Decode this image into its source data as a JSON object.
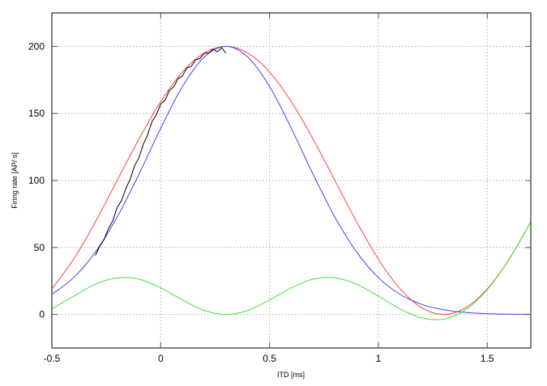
{
  "chart_data": {
    "type": "line",
    "title": "",
    "xlabel": "ITD [ms]",
    "ylabel": "Firing rate [AP/ s]",
    "xlim": [
      -0.5,
      1.7
    ],
    "ylim": [
      -25,
      225
    ],
    "xticks": [
      -0.5,
      0,
      0.5,
      1,
      1.5
    ],
    "xtick_labels": [
      "-0.5",
      "0",
      "0.5",
      "1",
      "1.5"
    ],
    "yticks": [
      0,
      50,
      100,
      150,
      200
    ],
    "ytick_labels": [
      "0",
      "50",
      "100",
      "150",
      "200"
    ],
    "grid": true,
    "legend": "none",
    "series": [
      {
        "color": "#ff4040",
        "x": [
          -0.5,
          -0.4,
          -0.3,
          -0.2,
          -0.1,
          0,
          0.1,
          0.2,
          0.3,
          0.4,
          0.5,
          0.6,
          0.7,
          0.8,
          0.9,
          1.0,
          1.1,
          1.2,
          1.3,
          1.4,
          1.5,
          1.6,
          1.7
        ],
        "y": [
          19.1,
          41.2,
          69.1,
          100,
          130.9,
          158.8,
          180.9,
          195.1,
          200,
          195.1,
          180.9,
          158.8,
          130.9,
          100,
          69.1,
          41.2,
          19.1,
          4.9,
          0,
          4.9,
          19.1,
          41.2,
          69.1
        ]
      },
      {
        "color": "#4040ff",
        "x": [
          -0.5,
          -0.4,
          -0.3,
          -0.2,
          -0.1,
          0,
          0.1,
          0.2,
          0.3,
          0.4,
          0.5,
          0.6,
          0.7,
          0.8,
          0.9,
          1.0,
          1.1,
          1.2,
          1.3,
          1.4,
          1.5,
          1.6,
          1.7
        ],
        "y": [
          15.0,
          27.5,
          46.6,
          72.7,
          104.6,
          138.9,
          170.1,
          192.1,
          200,
          192.1,
          170.1,
          138.9,
          104.6,
          72.7,
          46.6,
          27.5,
          15.0,
          7.5,
          3.5,
          1.5,
          0.6,
          0.2,
          0.1
        ]
      },
      {
        "color": "#40e040",
        "x": [
          -0.5,
          -0.4,
          -0.3,
          -0.2,
          -0.1,
          0,
          0.1,
          0.2,
          0.3,
          0.4,
          0.5,
          0.6,
          0.7,
          0.8,
          0.9,
          1.0,
          1.1,
          1.2,
          1.3,
          1.4,
          1.5,
          1.6,
          1.7
        ],
        "y": [
          4.1,
          13.7,
          22.5,
          27.3,
          26.3,
          19.9,
          10.8,
          3.0,
          0,
          3.0,
          10.8,
          19.9,
          26.3,
          27.3,
          22.5,
          13.7,
          4.1,
          -2.6,
          -3.5,
          3.4,
          18.5,
          41.0,
          69.0
        ]
      },
      {
        "color": "#000000",
        "x": [
          -0.3,
          -0.28,
          -0.26,
          -0.24,
          -0.22,
          -0.2,
          -0.18,
          -0.16,
          -0.14,
          -0.12,
          -0.1,
          -0.08,
          -0.06,
          -0.04,
          -0.02,
          0,
          0.02,
          0.04,
          0.06,
          0.08,
          0.1,
          0.12,
          0.14,
          0.16,
          0.18,
          0.2,
          0.22,
          0.24,
          0.26,
          0.28,
          0.3
        ],
        "y": [
          44,
          51,
          56,
          64,
          70,
          80,
          85,
          94,
          101,
          111,
          117,
          127,
          134,
          144,
          149,
          157,
          160,
          167,
          170,
          176,
          178,
          184,
          185,
          190,
          191,
          195,
          195,
          198,
          196,
          199,
          195
        ]
      }
    ]
  }
}
